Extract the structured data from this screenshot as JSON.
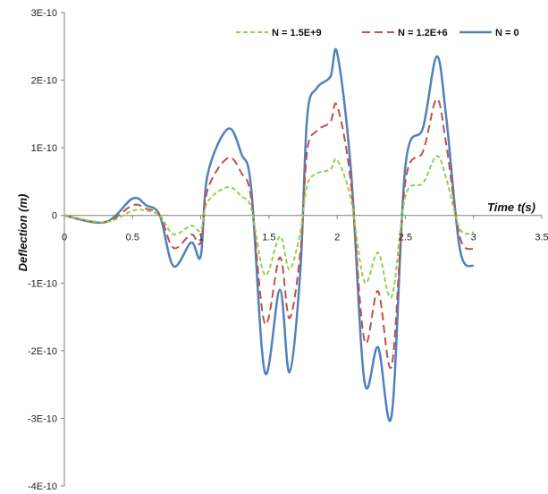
{
  "chart_data": {
    "type": "line",
    "title": "",
    "xlabel": "Time t(s)",
    "ylabel": "Deflection (m)",
    "xlim": [
      0,
      3.5
    ],
    "ylim": [
      -4e-10,
      3e-10
    ],
    "x_ticks": [
      0,
      0.5,
      1,
      1.5,
      2,
      2.5,
      3,
      3.5
    ],
    "x_tick_labels": [
      "0",
      "0.5",
      "1",
      "1.5",
      "2",
      "2.5",
      "3",
      "3.5"
    ],
    "y_ticks": [
      -4e-10,
      -3e-10,
      -2e-10,
      -1e-10,
      0,
      1e-10,
      2e-10,
      3e-10
    ],
    "y_tick_labels": [
      "-4E-10",
      "-3E-10",
      "-2E-10",
      "-1E-10",
      "0",
      "1E-10",
      "2E-10",
      "3E-10"
    ],
    "grid": false,
    "legend_position": "top-right",
    "series": [
      {
        "name": "N = 1.5E+9",
        "color": "#92D050",
        "dash": "dashed",
        "x": [
          0,
          0.3,
          0.5,
          0.6,
          0.7,
          0.8,
          0.93,
          1.0,
          1.05,
          1.2,
          1.3,
          1.37,
          1.47,
          1.58,
          1.65,
          1.73,
          1.78,
          1.85,
          1.95,
          2.0,
          2.1,
          2.2,
          2.3,
          2.4,
          2.5,
          2.63,
          2.73,
          2.8,
          2.9,
          3.0
        ],
        "y": [
          0,
          -1e-11,
          7e-12,
          7e-12,
          0,
          -2.8e-11,
          -1.5e-11,
          -2.2e-11,
          2e-11,
          4.2e-11,
          2.8e-11,
          1e-11,
          -8.8e-11,
          -3.1e-11,
          -8e-11,
          -2.5e-11,
          4.5e-11,
          6.2e-11,
          6.8e-11,
          8.2e-11,
          2.5e-11,
          -9.8e-11,
          -5.5e-11,
          -1.2e-10,
          2.8e-11,
          4.8e-11,
          8.8e-11,
          5.5e-11,
          -2e-11,
          -2.5e-11
        ]
      },
      {
        "name": "N = 1.2E+6",
        "color": "#C0504D",
        "dash": "dashed",
        "x": [
          0,
          0.3,
          0.5,
          0.6,
          0.7,
          0.8,
          0.93,
          1.0,
          1.05,
          1.2,
          1.3,
          1.37,
          1.47,
          1.58,
          1.65,
          1.73,
          1.78,
          1.85,
          1.95,
          2.0,
          2.1,
          2.2,
          2.3,
          2.4,
          2.5,
          2.63,
          2.73,
          2.8,
          2.9,
          3.0
        ],
        "y": [
          0,
          -1e-11,
          1.5e-11,
          1e-11,
          0,
          -4.8e-11,
          -2.8e-11,
          -4e-11,
          3.8e-11,
          8.5e-11,
          6.2e-11,
          2.5e-11,
          -1.6e-10,
          -6.2e-11,
          -1.52e-10,
          -5.5e-11,
          9.5e-11,
          1.25e-10,
          1.38e-10,
          1.62e-10,
          5e-11,
          -1.85e-10,
          -1.12e-10,
          -2.22e-10,
          5e-11,
          9.5e-11,
          1.72e-10,
          1.05e-10,
          -3.2e-11,
          -5e-11
        ]
      },
      {
        "name": "N = 0",
        "color": "#4F81BD",
        "dash": "solid",
        "x": [
          0,
          0.3,
          0.5,
          0.6,
          0.7,
          0.8,
          0.93,
          1.0,
          1.05,
          1.2,
          1.3,
          1.37,
          1.47,
          1.58,
          1.65,
          1.73,
          1.78,
          1.85,
          1.95,
          2.0,
          2.1,
          2.2,
          2.3,
          2.4,
          2.5,
          2.63,
          2.73,
          2.8,
          2.9,
          3.0
        ],
        "y": [
          0,
          -1e-11,
          2.5e-11,
          1.5e-11,
          0,
          -7.5e-11,
          -4e-11,
          -6e-11,
          6e-11,
          1.28e-10,
          9e-11,
          4e-11,
          -2.32e-10,
          -1.1e-10,
          -2.32e-10,
          -8.2e-11,
          1.45e-10,
          1.88e-10,
          2.05e-10,
          2.4e-10,
          7e-11,
          -2.45e-10,
          -1.95e-10,
          -2.95e-10,
          7.2e-11,
          1.3e-10,
          2.35e-10,
          1.45e-10,
          -5e-11,
          -7.5e-11
        ]
      }
    ]
  }
}
